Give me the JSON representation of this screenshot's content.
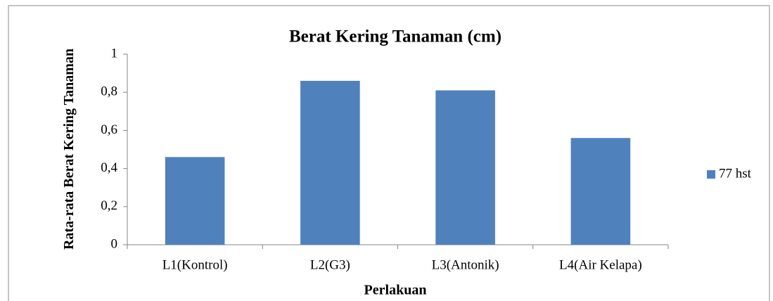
{
  "chart_data": {
    "type": "bar",
    "title": "Berat Kering Tanaman (cm)",
    "x_label": "Perlakuan",
    "y_label": "Rata-rata Berat Kering Tanaman",
    "categories": [
      "L1(Kontrol)",
      "L2(G3)",
      "L3(Antonik)",
      "L4(Air Kelapa)"
    ],
    "series": [
      {
        "name": "77 hst",
        "color": "#4f81bd",
        "values": [
          0.46,
          0.86,
          0.81,
          0.56
        ]
      }
    ],
    "ylim": [
      0,
      1
    ],
    "yticks": [
      0,
      {
        "value": 0.2,
        "label": "0,2"
      },
      {
        "value": 0.4,
        "label": "0,4"
      },
      {
        "value": 0.6,
        "label": "0,6"
      },
      {
        "value": 0.8,
        "label": "0,8"
      },
      1
    ],
    "legend": "right"
  }
}
